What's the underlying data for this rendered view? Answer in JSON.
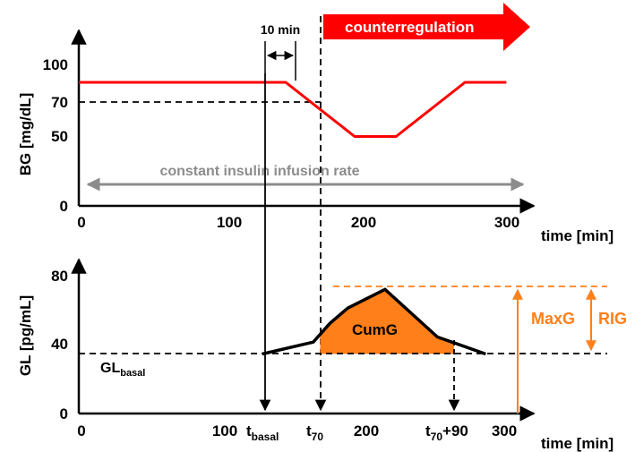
{
  "colors": {
    "bg_line": "#ff0000",
    "counter_arrow": "#ff0000",
    "insulin_arrow": "#8c8c8c",
    "cumg_fill": "#ff7f1a",
    "orange": "#ff7f1a"
  },
  "chart_data": [
    {
      "type": "line",
      "xlabel": "time [min]",
      "ylabel": "BG [mg/dL]",
      "xlim": [
        0,
        320
      ],
      "ylim": [
        0,
        130
      ],
      "x_ticks": [
        "0",
        "100",
        "200",
        "300"
      ],
      "y_ticks": [
        "0",
        "50",
        "70",
        "100"
      ],
      "series": [
        {
          "x": [
            0,
            150,
            200,
            230,
            280,
            310
          ],
          "y": [
            89,
            89,
            50,
            50,
            89,
            89
          ]
        }
      ],
      "threshold_y": 70,
      "threshold_label": "70",
      "annotations": {
        "interval_label": "10 min",
        "counterregulation": "counterregulation",
        "insulin": "constant insulin infusion rate"
      }
    },
    {
      "type": "area",
      "xlabel": "time [min]",
      "ylabel": "GL [pg/mL]",
      "xlim": [
        0,
        320
      ],
      "ylim": [
        0,
        100
      ],
      "x_ticks": [
        "0",
        "100",
        "200",
        "300"
      ],
      "y_ticks": [
        "0",
        "40",
        "80"
      ],
      "series": [
        {
          "x": [
            133,
            170,
            182,
            195,
            222,
            260,
            295
          ],
          "y": [
            35,
            42,
            53,
            62,
            73,
            45,
            35
          ]
        }
      ],
      "basal_y": 35,
      "labels": {
        "gl_basal_main": "GL",
        "gl_basal_sub": "basal",
        "t_basal_main": "t",
        "t_basal_sub": "basal",
        "t70_main": "t",
        "t70_sub": "70",
        "t70_90_main": "t",
        "t70_90_sub": "70",
        "t70_90_suffix": "+90",
        "cumg": "CumG",
        "maxg": "MaxG",
        "rig": "RIG"
      }
    }
  ]
}
